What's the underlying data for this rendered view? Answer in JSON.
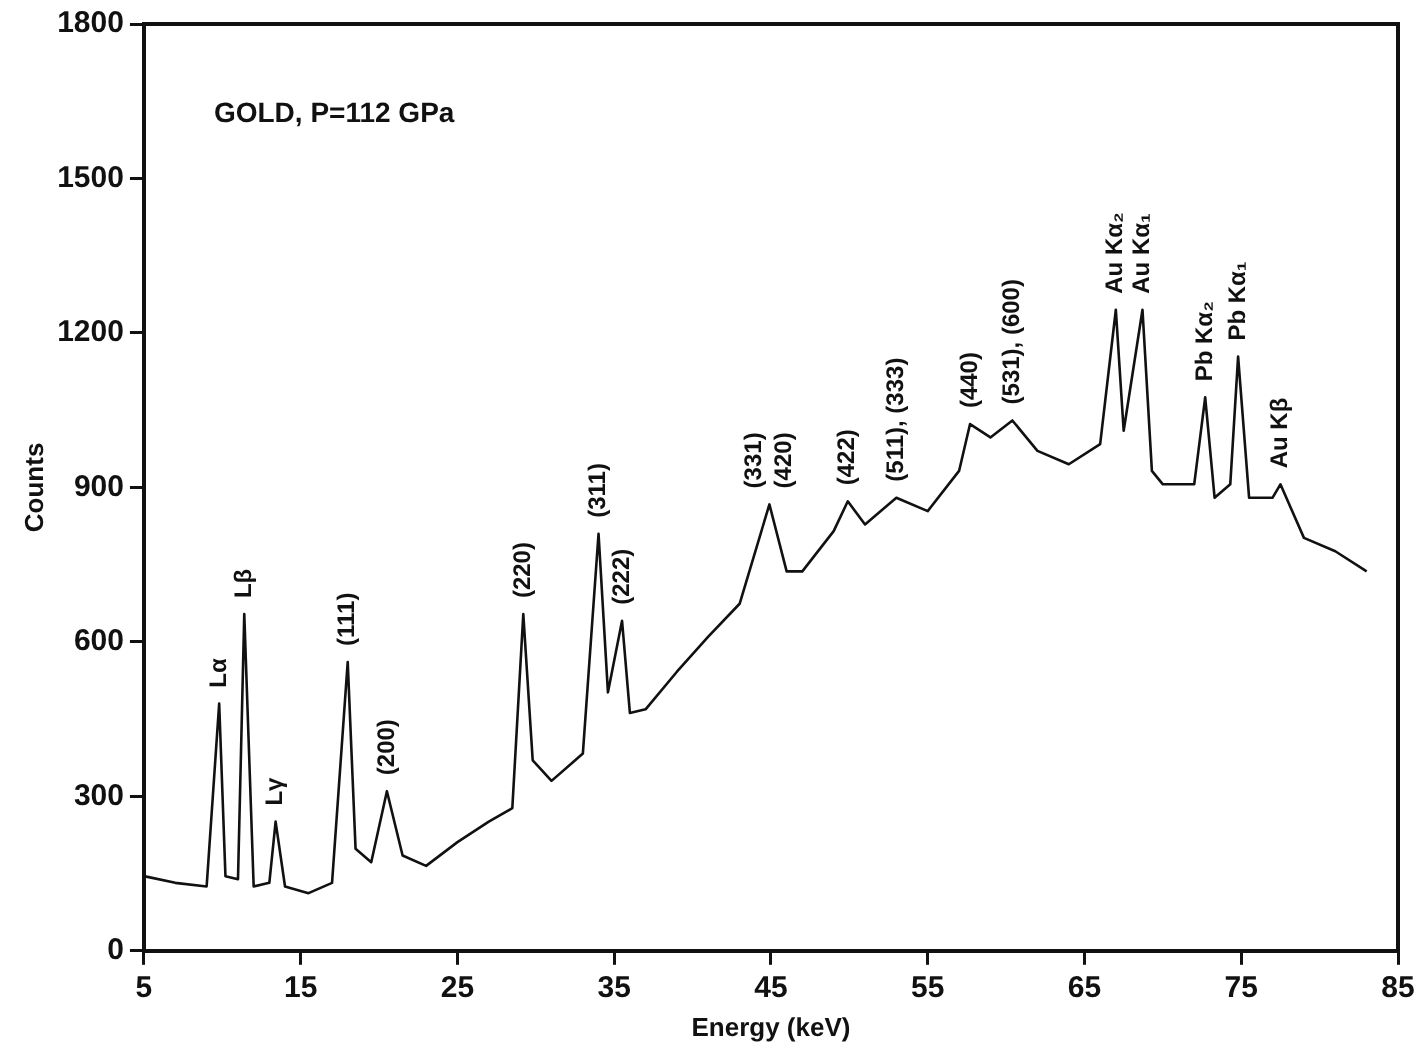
{
  "chart_data": {
    "type": "line",
    "title": "GOLD, P=112 GPa",
    "xlabel": "Energy (keV)",
    "ylabel": "Counts",
    "xlim": [
      5,
      85
    ],
    "xticks": [
      5,
      15,
      25,
      35,
      45,
      55,
      65,
      75,
      85
    ],
    "ylim": [
      0,
      1800
    ],
    "yticks": [
      0,
      300,
      600,
      900,
      1200,
      1500,
      1800
    ],
    "grid": false,
    "legend": false,
    "marker": "none",
    "line_style": "solid",
    "series": [
      {
        "color": "#111111",
        "x": [
          5,
          7,
          9,
          9.8,
          10.2,
          11,
          11.4,
          12,
          13,
          13.4,
          14,
          15.5,
          17,
          18,
          18.5,
          19.5,
          20.5,
          21.5,
          23,
          25,
          27,
          28.5,
          29.2,
          29.8,
          31,
          33,
          34,
          34.6,
          35.5,
          36,
          37,
          39,
          41,
          43,
          44.9,
          46,
          47,
          49,
          49.9,
          51,
          53,
          55,
          57,
          57.7,
          59,
          60.4,
          62,
          64,
          66,
          67,
          67.5,
          68.7,
          69.3,
          70,
          72,
          72.7,
          73.3,
          74.3,
          74.8,
          75.5,
          77,
          77.5,
          79,
          81,
          83
        ],
        "values": [
          145,
          132,
          125,
          480,
          145,
          139,
          654,
          125,
          132,
          251,
          125,
          112,
          132,
          561,
          198,
          172,
          310,
          185,
          165,
          211,
          251,
          277,
          654,
          370,
          330,
          383,
          810,
          502,
          641,
          462,
          469,
          542,
          610,
          674,
          867,
          737,
          737,
          815,
          873,
          828,
          880,
          854,
          932,
          1023,
          997,
          1030,
          971,
          945,
          984,
          1245,
          1010,
          1245,
          932,
          906,
          906,
          1075,
          880,
          906,
          1154,
          880,
          880,
          906,
          802,
          776,
          737
        ]
      }
    ],
    "annotations": [
      {
        "text": "Lα",
        "x": 9.8,
        "y": 480
      },
      {
        "text": "Lβ",
        "x": 11.4,
        "y": 654
      },
      {
        "text": "Lγ",
        "x": 13.4,
        "y": 251
      },
      {
        "text": "(111)",
        "x": 18,
        "y": 561
      },
      {
        "text": "(200)",
        "x": 20.5,
        "y": 310
      },
      {
        "text": "(220)",
        "x": 29.2,
        "y": 654
      },
      {
        "text": "(311)",
        "x": 34,
        "y": 810
      },
      {
        "text": "(222)",
        "x": 35.5,
        "y": 641
      },
      {
        "text": "(331)",
        "x": 44.9,
        "y": 867
      },
      {
        "text": "(420)",
        "x": 44.9,
        "y": 867
      },
      {
        "text": "(422)",
        "x": 49.9,
        "y": 873
      },
      {
        "text": "(511), (333)",
        "x": 53,
        "y": 880
      },
      {
        "text": "(440)",
        "x": 57.7,
        "y": 1023
      },
      {
        "text": "(531), (600)",
        "x": 60.4,
        "y": 1030
      },
      {
        "text": "Au Kα₂",
        "x": 67,
        "y": 1245
      },
      {
        "text": "Au Kα₁",
        "x": 68.7,
        "y": 1245
      },
      {
        "text": "Pb Kα₂",
        "x": 72.7,
        "y": 1075
      },
      {
        "text": "Pb Kα₁",
        "x": 74.8,
        "y": 1154
      },
      {
        "text": "Au Kβ",
        "x": 77.5,
        "y": 906
      }
    ]
  }
}
